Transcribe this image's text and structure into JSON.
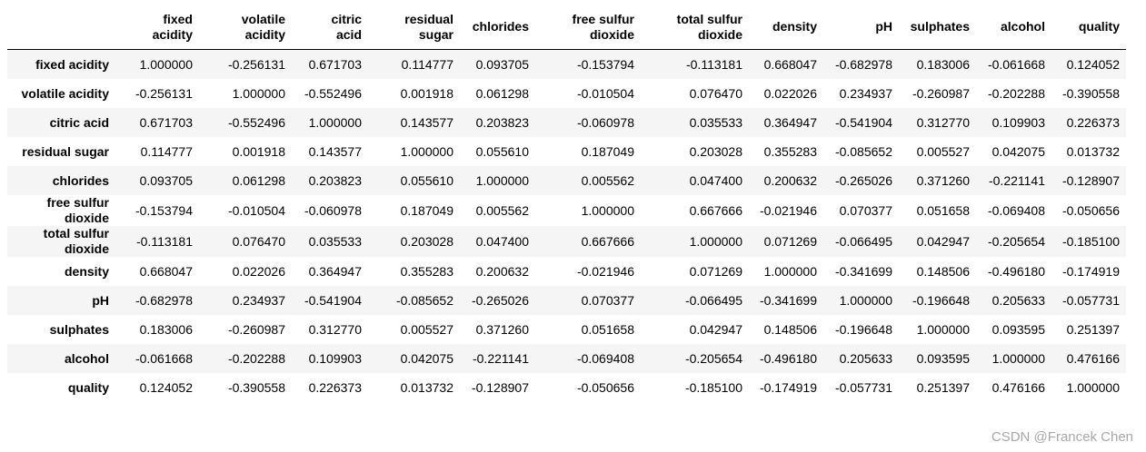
{
  "table": {
    "columns": [
      "fixed acidity",
      "volatile acidity",
      "citric acid",
      "residual sugar",
      "chlorides",
      "free sulfur dioxide",
      "total sulfur dioxide",
      "density",
      "pH",
      "sulphates",
      "alcohol",
      "quality"
    ],
    "rows": [
      {
        "label": "fixed acidity",
        "values": [
          "1.000000",
          "-0.256131",
          "0.671703",
          "0.114777",
          "0.093705",
          "-0.153794",
          "-0.113181",
          "0.668047",
          "-0.682978",
          "0.183006",
          "-0.061668",
          "0.124052"
        ]
      },
      {
        "label": "volatile acidity",
        "values": [
          "-0.256131",
          "1.000000",
          "-0.552496",
          "0.001918",
          "0.061298",
          "-0.010504",
          "0.076470",
          "0.022026",
          "0.234937",
          "-0.260987",
          "-0.202288",
          "-0.390558"
        ]
      },
      {
        "label": "citric acid",
        "values": [
          "0.671703",
          "-0.552496",
          "1.000000",
          "0.143577",
          "0.203823",
          "-0.060978",
          "0.035533",
          "0.364947",
          "-0.541904",
          "0.312770",
          "0.109903",
          "0.226373"
        ]
      },
      {
        "label": "residual sugar",
        "values": [
          "0.114777",
          "0.001918",
          "0.143577",
          "1.000000",
          "0.055610",
          "0.187049",
          "0.203028",
          "0.355283",
          "-0.085652",
          "0.005527",
          "0.042075",
          "0.013732"
        ]
      },
      {
        "label": "chlorides",
        "values": [
          "0.093705",
          "0.061298",
          "0.203823",
          "0.055610",
          "1.000000",
          "0.005562",
          "0.047400",
          "0.200632",
          "-0.265026",
          "0.371260",
          "-0.221141",
          "-0.128907"
        ]
      },
      {
        "label": "free sulfur dioxide",
        "values": [
          "-0.153794",
          "-0.010504",
          "-0.060978",
          "0.187049",
          "0.005562",
          "1.000000",
          "0.667666",
          "-0.021946",
          "0.070377",
          "0.051658",
          "-0.069408",
          "-0.050656"
        ]
      },
      {
        "label": "total sulfur dioxide",
        "values": [
          "-0.113181",
          "0.076470",
          "0.035533",
          "0.203028",
          "0.047400",
          "0.667666",
          "1.000000",
          "0.071269",
          "-0.066495",
          "0.042947",
          "-0.205654",
          "-0.185100"
        ]
      },
      {
        "label": "density",
        "values": [
          "0.668047",
          "0.022026",
          "0.364947",
          "0.355283",
          "0.200632",
          "-0.021946",
          "0.071269",
          "1.000000",
          "-0.341699",
          "0.148506",
          "-0.496180",
          "-0.174919"
        ]
      },
      {
        "label": "pH",
        "values": [
          "-0.682978",
          "0.234937",
          "-0.541904",
          "-0.085652",
          "-0.265026",
          "0.070377",
          "-0.066495",
          "-0.341699",
          "1.000000",
          "-0.196648",
          "0.205633",
          "-0.057731"
        ]
      },
      {
        "label": "sulphates",
        "values": [
          "0.183006",
          "-0.260987",
          "0.312770",
          "0.005527",
          "0.371260",
          "0.051658",
          "0.042947",
          "0.148506",
          "-0.196648",
          "1.000000",
          "0.093595",
          "0.251397"
        ]
      },
      {
        "label": "alcohol",
        "values": [
          "-0.061668",
          "-0.202288",
          "0.109903",
          "0.042075",
          "-0.221141",
          "-0.069408",
          "-0.205654",
          "-0.496180",
          "0.205633",
          "0.093595",
          "1.000000",
          "0.476166"
        ]
      },
      {
        "label": "quality",
        "values": [
          "0.124052",
          "-0.390558",
          "0.226373",
          "0.013732",
          "-0.128907",
          "-0.050656",
          "-0.185100",
          "-0.174919",
          "-0.057731",
          "0.251397",
          "0.476166",
          "1.000000"
        ]
      }
    ]
  },
  "watermark": "CSDN @Francek Chen"
}
